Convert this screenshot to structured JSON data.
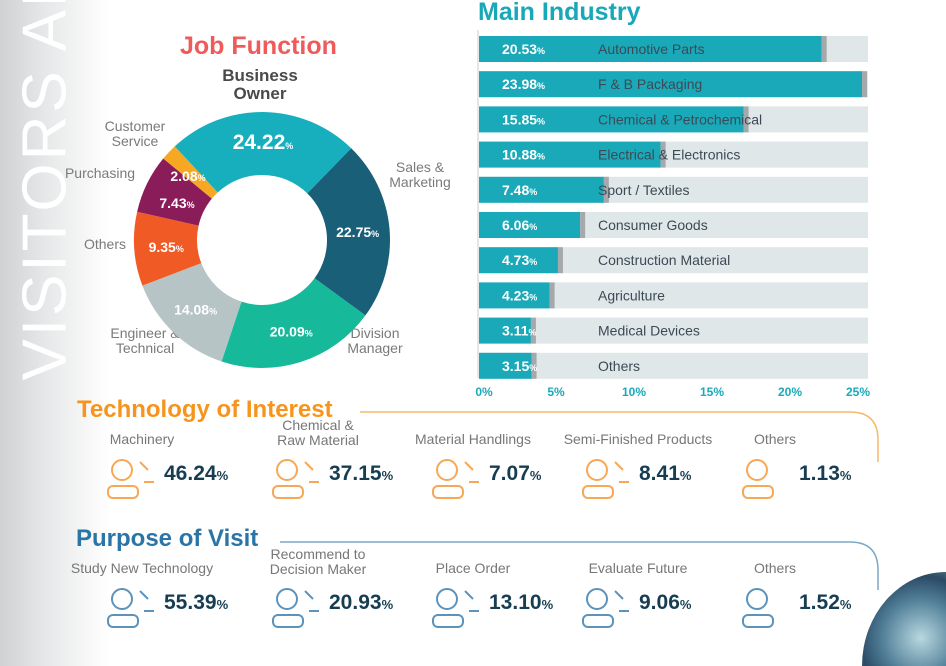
{
  "side_title": "VISITORS ANA",
  "job_function": {
    "title": "Job Function"
  },
  "main_industry": {
    "title": "Main Industry"
  },
  "chart_data": [
    {
      "type": "pie",
      "title": "Job Function",
      "donut": true,
      "slices": [
        {
          "label": "Business Owner",
          "value": 24.22,
          "display": "24.22",
          "color": "#17afbd"
        },
        {
          "label": "Sales & Marketing",
          "value": 22.75,
          "display": "22.75",
          "color": "#1a5f78"
        },
        {
          "label": "Division Manager",
          "value": 20.09,
          "display": "20.09",
          "color": "#16b99a"
        },
        {
          "label": "Engineer & Technical",
          "value": 14.08,
          "display": "14.08",
          "color": "#b7c4c6"
        },
        {
          "label": "Others",
          "value": 9.35,
          "display": "9.35",
          "color": "#f05a24"
        },
        {
          "label": "Purchasing",
          "value": 7.43,
          "display": "7.43",
          "color": "#8a1c5a"
        },
        {
          "label": "Customer Service",
          "value": 2.08,
          "display": "2.08",
          "color": "#f7a823"
        }
      ]
    },
    {
      "type": "bar",
      "orientation": "horizontal",
      "title": "Main Industry",
      "xlim": [
        0,
        25
      ],
      "xticks": [
        "0%",
        "5%",
        "10%",
        "15%",
        "20%",
        "25%"
      ],
      "categories": [
        "Automotive Parts",
        "F & B Packaging",
        "Chemical & Petrochemical",
        "Electrical & Electronics",
        "Sport / Textiles",
        "Consumer Goods",
        "Construction Material",
        "Agriculture",
        "Medical Devices",
        "Others"
      ],
      "values": [
        20.53,
        23.98,
        15.85,
        10.88,
        7.48,
        6.06,
        4.73,
        4.23,
        3.11,
        3.15
      ],
      "color": "#1aa9b9"
    }
  ],
  "technology": {
    "title": "Technology of Interest",
    "color": "#f7941d",
    "items": [
      {
        "label": "Machinery",
        "value": "46.24",
        "icon": "conveyor-robot-icon"
      },
      {
        "label": "Chemical & Raw Material",
        "value": "37.15",
        "icon": "test-tubes-icon"
      },
      {
        "label": "Material Handlings",
        "value": "7.07",
        "icon": "tools-icon"
      },
      {
        "label": "Semi-Finished Products",
        "value": "8.41",
        "icon": "person-puzzle-icon"
      },
      {
        "label": "Others",
        "value": "1.13",
        "icon": "loop-icon"
      }
    ]
  },
  "purpose": {
    "title": "Purpose of Visit",
    "color": "#2a75a8",
    "items": [
      {
        "label": "Study New Technology",
        "value": "55.39",
        "icon": "globe-person-icon"
      },
      {
        "label": "Recommend to Decision Maker",
        "value": "20.93",
        "icon": "person-gear-icon"
      },
      {
        "label": "Place Order",
        "value": "13.10",
        "icon": "person-growth-icon"
      },
      {
        "label": "Evaluate Future",
        "value": "9.06",
        "icon": "magnifier-chart-icon"
      },
      {
        "label": "Others",
        "value": "1.52",
        "icon": "loop-icon"
      }
    ]
  },
  "pct": "%"
}
